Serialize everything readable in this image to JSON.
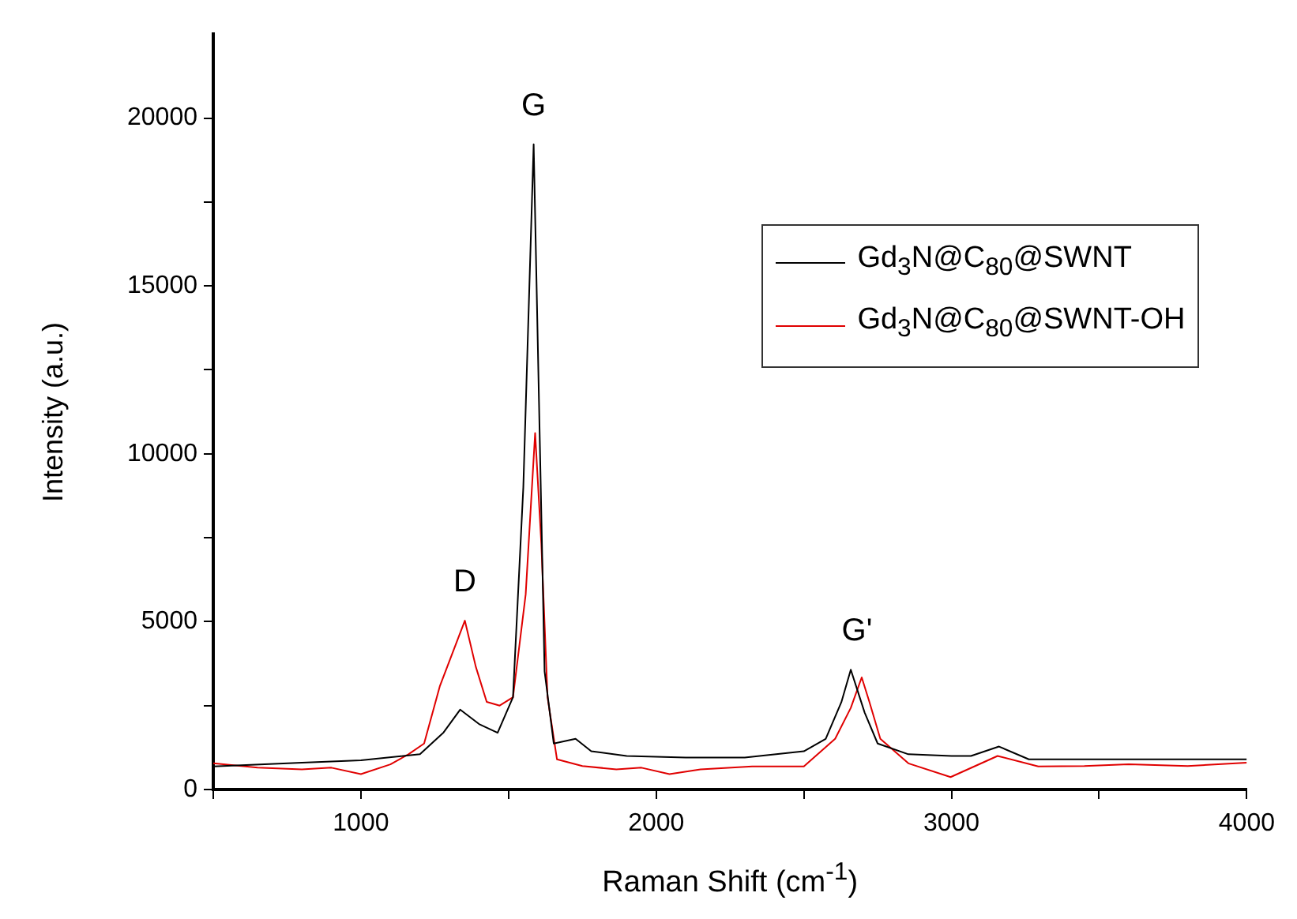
{
  "chart_data": {
    "type": "line",
    "xlabel": "Raman Shift (cm$^{-1}$)",
    "ylabel": "Intensity (a.u.)",
    "xlim": [
      500,
      4000
    ],
    "xticks": [
      {
        "value": 500,
        "label": null
      },
      1000,
      {
        "value": 1500,
        "label": null
      },
      2000,
      {
        "value": 2500,
        "label": null
      },
      3000,
      {
        "value": 3500,
        "label": null
      },
      4000
    ],
    "ylim": [
      0,
      22500
    ],
    "yticks": [
      0,
      {
        "value": 2500,
        "label": null
      },
      5000,
      {
        "value": 7500,
        "label": null
      },
      10000,
      {
        "value": 12500,
        "label": null
      },
      15000,
      {
        "value": 17500,
        "label": null
      },
      20000
    ],
    "grid": false,
    "legend": "top right",
    "marker": "none",
    "line_style": "solid",
    "annotations": [
      {
        "text": "D",
        "x": 1352,
        "y": 5030
      },
      {
        "text": "G",
        "x": 1585,
        "y": 19220
      },
      {
        "text": "G'",
        "x": 2680,
        "y": 3570
      }
    ],
    "series": [
      {
        "name": "Gd$_{3}$N@C$_{80}$@SWNT",
        "color": "#000000",
        "x": [
          500,
          800,
          1000,
          1200,
          1280,
          1336,
          1400,
          1463,
          1515,
          1550,
          1585,
          1622,
          1653,
          1727,
          1780,
          1900,
          2100,
          2300,
          2500,
          2574,
          2627,
          2659,
          2706,
          2750,
          2854,
          3000,
          3066,
          3161,
          3262,
          3500,
          3800,
          4000
        ],
        "values": [
          690,
          800,
          870,
          1050,
          1700,
          2380,
          1950,
          1690,
          2750,
          9000,
          19220,
          3520,
          1370,
          1510,
          1140,
          1000,
          950,
          950,
          1140,
          1510,
          2600,
          3570,
          2290,
          1370,
          1050,
          1000,
          1000,
          1280,
          900,
          900,
          900,
          900
        ]
      },
      {
        "name": "Gd$_{3}$N@C$_{80}$@SWNT-OH",
        "color": "#e00000",
        "x": [
          500,
          650,
          800,
          900,
          1000,
          1100,
          1161,
          1214,
          1267,
          1352,
          1389,
          1426,
          1470,
          1515,
          1558,
          1590,
          1611,
          1632,
          1664,
          1750,
          1865,
          1950,
          2045,
          2150,
          2325,
          2500,
          2606,
          2659,
          2696,
          2722,
          2759,
          2854,
          2997,
          3156,
          3294,
          3450,
          3600,
          3800,
          4000
        ],
        "values": [
          780,
          650,
          600,
          650,
          460,
          750,
          1050,
          1370,
          3070,
          5030,
          3660,
          2610,
          2500,
          2750,
          5810,
          10620,
          7320,
          2750,
          900,
          700,
          600,
          650,
          460,
          600,
          690,
          690,
          1510,
          2430,
          3340,
          2610,
          1510,
          780,
          370,
          1000,
          690,
          700,
          750,
          700,
          800
        ]
      }
    ]
  }
}
